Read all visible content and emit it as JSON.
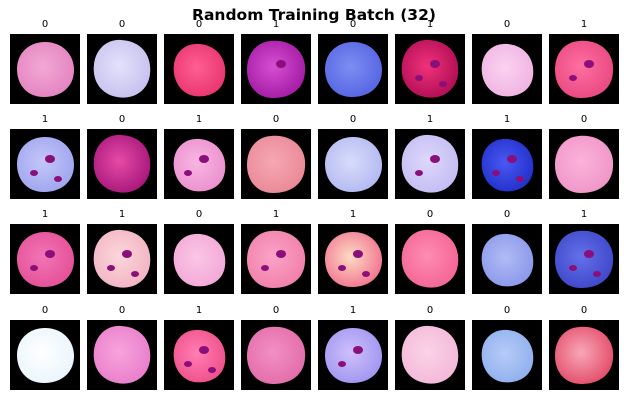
{
  "figure": {
    "title": "Random Training Batch (32)"
  },
  "samples": [
    {
      "label": "0",
      "colors": [
        "#f3a8d6",
        "#e383c0"
      ]
    },
    {
      "label": "0",
      "colors": [
        "#e3e2fb",
        "#c6c0ee"
      ]
    },
    {
      "label": "0",
      "colors": [
        "#ff5f93",
        "#e8346f"
      ]
    },
    {
      "label": "1",
      "colors": [
        "#d64fd1",
        "#a31aa4"
      ]
    },
    {
      "label": "0",
      "colors": [
        "#7e8df2",
        "#5565e2"
      ]
    },
    {
      "label": "1",
      "colors": [
        "#f0327a",
        "#b00d55"
      ]
    },
    {
      "label": "0",
      "colors": [
        "#fbd2f0",
        "#efb3e3"
      ]
    },
    {
      "label": "1",
      "colors": [
        "#ff6fa1",
        "#e84880"
      ]
    },
    {
      "label": "1",
      "colors": [
        "#c4c6f8",
        "#9fa5ef"
      ]
    },
    {
      "label": "0",
      "colors": [
        "#e74aa6",
        "#a6177b"
      ]
    },
    {
      "label": "1",
      "colors": [
        "#f8b6e3",
        "#eb90ce"
      ]
    },
    {
      "label": "0",
      "colors": [
        "#f6a8b3",
        "#ea8897"
      ]
    },
    {
      "label": "0",
      "colors": [
        "#d8dcfb",
        "#b3b9f1"
      ]
    },
    {
      "label": "1",
      "colors": [
        "#ddd8fb",
        "#c3bcf3"
      ]
    },
    {
      "label": "1",
      "colors": [
        "#4a58f4",
        "#2130c9"
      ]
    },
    {
      "label": "0",
      "colors": [
        "#fbb3d9",
        "#f095c8"
      ]
    },
    {
      "label": "1",
      "colors": [
        "#f275b5",
        "#e54f98"
      ]
    },
    {
      "label": "1",
      "colors": [
        "#fbd7da",
        "#f2b3c3"
      ]
    },
    {
      "label": "0",
      "colors": [
        "#fbc6e5",
        "#f2a8d7"
      ]
    },
    {
      "label": "1",
      "colors": [
        "#fba3c7",
        "#f07fa8"
      ]
    },
    {
      "label": "1",
      "colors": [
        "#fcdcc4",
        "#f27390"
      ]
    },
    {
      "label": "0",
      "colors": [
        "#ff8cb2",
        "#f36594"
      ]
    },
    {
      "label": "0",
      "colors": [
        "#b0bbf5",
        "#8b98ea"
      ]
    },
    {
      "label": "1",
      "colors": [
        "#6570ea",
        "#3d47c9"
      ]
    },
    {
      "label": "0",
      "colors": [
        "#ffffff",
        "#e9f5fb"
      ]
    },
    {
      "label": "0",
      "colors": [
        "#f9a3dd",
        "#e87ecb"
      ]
    },
    {
      "label": "1",
      "colors": [
        "#ff7fb2",
        "#ef4f8a"
      ]
    },
    {
      "label": "0",
      "colors": [
        "#f38fc3",
        "#e26ca9"
      ]
    },
    {
      "label": "1",
      "colors": [
        "#cfc0fb",
        "#9f95f0"
      ]
    },
    {
      "label": "0",
      "colors": [
        "#fbd3e8",
        "#f3b8d8"
      ]
    },
    {
      "label": "0",
      "colors": [
        "#b6cbf7",
        "#8fb0ee"
      ]
    },
    {
      "label": "0",
      "colors": [
        "#f7a8b7",
        "#e34b69"
      ]
    }
  ]
}
